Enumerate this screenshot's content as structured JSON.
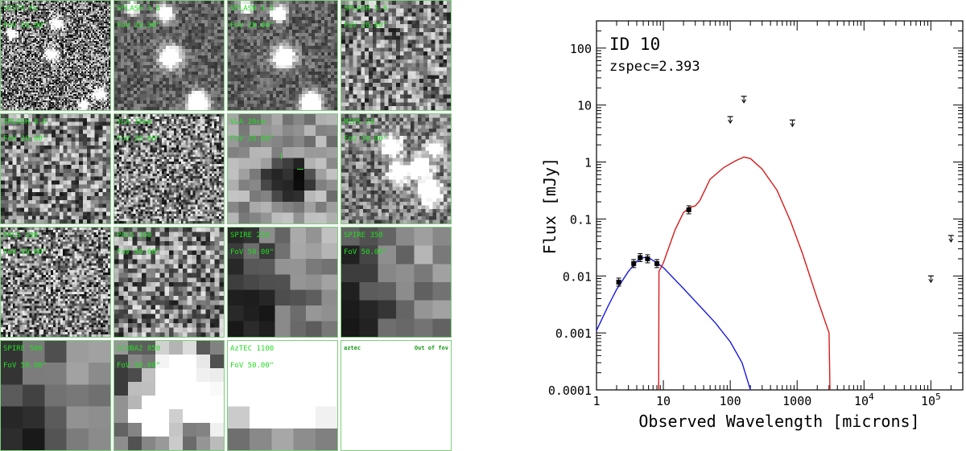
{
  "cutouts": [
    {
      "band": "VISTA Ks",
      "fov": "FoV 20.00\"",
      "style": "stars"
    },
    {
      "band": "SPLASH 3.6",
      "fov": "FoV 20.00\"",
      "style": "irac"
    },
    {
      "band": "SPLASH 4.5",
      "fov": "FoV 20.00\"",
      "style": "irac"
    },
    {
      "band": "SPLASH 5.8",
      "fov": "FoV 20.00\"",
      "style": "noisy"
    },
    {
      "band": "SPLASH 8.0",
      "fov": "FoV 20.00\"",
      "style": "noisy"
    },
    {
      "band": "VLA 10cm",
      "fov": "FoV 20.00\"",
      "style": "fine"
    },
    {
      "band": "VLA 20cm",
      "fov": "FoV 20.00\"",
      "style": "blob"
    },
    {
      "band": "MIPS 24",
      "fov": "FoV 50.00\"",
      "style": "mips"
    },
    {
      "band": "PACS 100",
      "fov": "FoV 50.00\"",
      "style": "fine"
    },
    {
      "band": "PACS 160",
      "fov": "FoV 50.00\"",
      "style": "medium"
    },
    {
      "band": "SPIRE 250",
      "fov": "FoV 50.00\"",
      "style": "coarse6"
    },
    {
      "band": "SPIRE 350",
      "fov": "FoV 50.00\"",
      "style": "coarse5"
    },
    {
      "band": "SPIRE 500",
      "fov": "FoV 50.00\"",
      "style": "coarse4"
    },
    {
      "band": "SCUBA2 850",
      "fov": "FoV 50.00\"",
      "style": "smooth"
    },
    {
      "band": "AzTEC 1100",
      "fov": "FoV 50.00\"",
      "style": "smooth2"
    },
    {
      "band": "aztec",
      "fov": "Out of fov",
      "style": "blank"
    }
  ],
  "chart_data": {
    "type": "line",
    "title": "ID 10",
    "subtitle": "zspec=2.393",
    "xlabel": "Observed Wavelength [microns]",
    "ylabel": "Flux [mJy]",
    "xscale": "log",
    "yscale": "log",
    "xlim": [
      1,
      300000
    ],
    "ylim": [
      0.0001,
      300
    ],
    "x_tick_labels": [
      "1",
      "10",
      "100",
      "1000",
      "10^4",
      "10^5"
    ],
    "y_tick_labels": [
      "0.0001",
      "0.001",
      "0.01",
      "0.1",
      "1",
      "10",
      "100"
    ],
    "detections": [
      {
        "x": 2.15,
        "y": 0.0078
      },
      {
        "x": 3.6,
        "y": 0.0165
      },
      {
        "x": 4.5,
        "y": 0.021
      },
      {
        "x": 5.8,
        "y": 0.02
      },
      {
        "x": 8.0,
        "y": 0.0165
      },
      {
        "x": 24,
        "y": 0.145
      }
    ],
    "upper_limits": [
      {
        "x": 100,
        "y": 5.5
      },
      {
        "x": 160,
        "y": 12.5
      },
      {
        "x": 850,
        "y": 4.8
      },
      {
        "x": 100000,
        "y": 0.0088
      },
      {
        "x": 200000,
        "y": 0.045
      }
    ],
    "series": [
      {
        "name": "stellar",
        "color": "#1a1adf",
        "points": [
          [
            1,
            0.0011
          ],
          [
            1.5,
            0.003
          ],
          [
            2,
            0.0058
          ],
          [
            3,
            0.012
          ],
          [
            4,
            0.018
          ],
          [
            5,
            0.021
          ],
          [
            6,
            0.021
          ],
          [
            8,
            0.017
          ],
          [
            10,
            0.014
          ],
          [
            20,
            0.006
          ],
          [
            40,
            0.0025
          ],
          [
            60,
            0.0015
          ],
          [
            100,
            0.0007
          ],
          [
            150,
            0.0003
          ],
          [
            200,
            0.0001
          ]
        ]
      },
      {
        "name": "dust",
        "color": "#d81b1b",
        "points": [
          [
            8.5,
            0.0001
          ],
          [
            8.6,
            0.012
          ],
          [
            10,
            0.017
          ],
          [
            15,
            0.065
          ],
          [
            20,
            0.13
          ],
          [
            25,
            0.16
          ],
          [
            30,
            0.17
          ],
          [
            35,
            0.21
          ],
          [
            50,
            0.5
          ],
          [
            80,
            0.8
          ],
          [
            120,
            1.05
          ],
          [
            160,
            1.22
          ],
          [
            200,
            1.15
          ],
          [
            300,
            0.75
          ],
          [
            500,
            0.32
          ],
          [
            800,
            0.09
          ],
          [
            1200,
            0.025
          ],
          [
            2000,
            0.004
          ],
          [
            3000,
            0.001
          ],
          [
            3100,
            0.0001
          ]
        ]
      }
    ]
  }
}
